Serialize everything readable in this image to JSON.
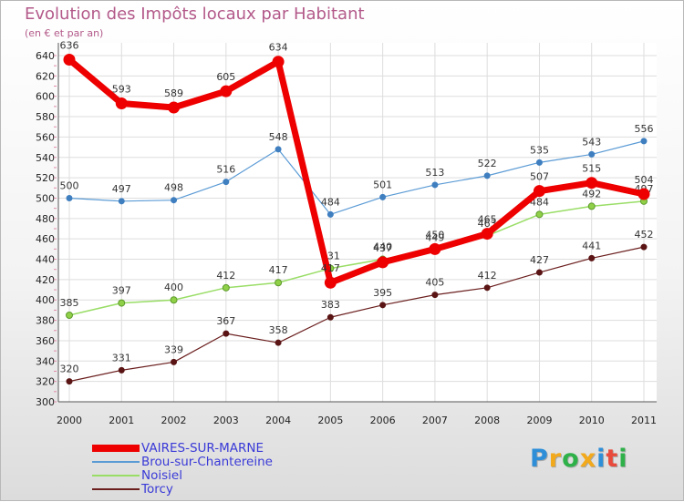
{
  "chart_data": {
    "type": "line",
    "title": "Evolution des Impôts locaux par Habitant",
    "subtitle": "(en € et par an)",
    "xlabel": "",
    "ylabel": "",
    "categories": [
      "2000",
      "2001",
      "2002",
      "2003",
      "2004",
      "2005",
      "2006",
      "2007",
      "2008",
      "2009",
      "2010",
      "2011"
    ],
    "ylim": [
      300,
      640
    ],
    "yticks": [
      "300",
      "320",
      "340",
      "360",
      "380",
      "400",
      "420",
      "440",
      "460",
      "480",
      "500",
      "520",
      "540",
      "560",
      "580",
      "600",
      "620",
      "640"
    ],
    "grid": true,
    "legend_position": "bottom-left",
    "series": [
      {
        "name": "Torcy",
        "color": "#6b1e1e",
        "values": [
          320,
          331,
          339,
          367,
          358,
          383,
          395,
          405,
          412,
          427,
          441,
          452
        ]
      },
      {
        "name": "Noisiel",
        "color": "#99dd66",
        "values": [
          385,
          397,
          400,
          412,
          417,
          431,
          440,
          449,
          463,
          484,
          492,
          497
        ]
      },
      {
        "name": "Brou-sur-Chantereine",
        "color": "#5b9bd5",
        "values": [
          500,
          497,
          498,
          516,
          548,
          484,
          501,
          513,
          522,
          535,
          543,
          556
        ]
      },
      {
        "name": "VAIRES-SUR-MARNE",
        "color": "#ee0000",
        "values": [
          636,
          593,
          589,
          605,
          634,
          417,
          437,
          450,
          465,
          507,
          515,
          504
        ]
      }
    ]
  },
  "legend_order": [
    "VAIRES-SUR-MARNE",
    "Brou-sur-Chantereine",
    "Noisiel",
    "Torcy"
  ],
  "logo": {
    "letters": [
      "P",
      "r",
      "o",
      "x",
      "i",
      "t",
      "i"
    ],
    "colors": [
      "#2e8fd8",
      "#f2a91c",
      "#2fb14a",
      "#f2a91c",
      "#2e8fd8",
      "#e84b3c",
      "#2fb14a"
    ]
  }
}
